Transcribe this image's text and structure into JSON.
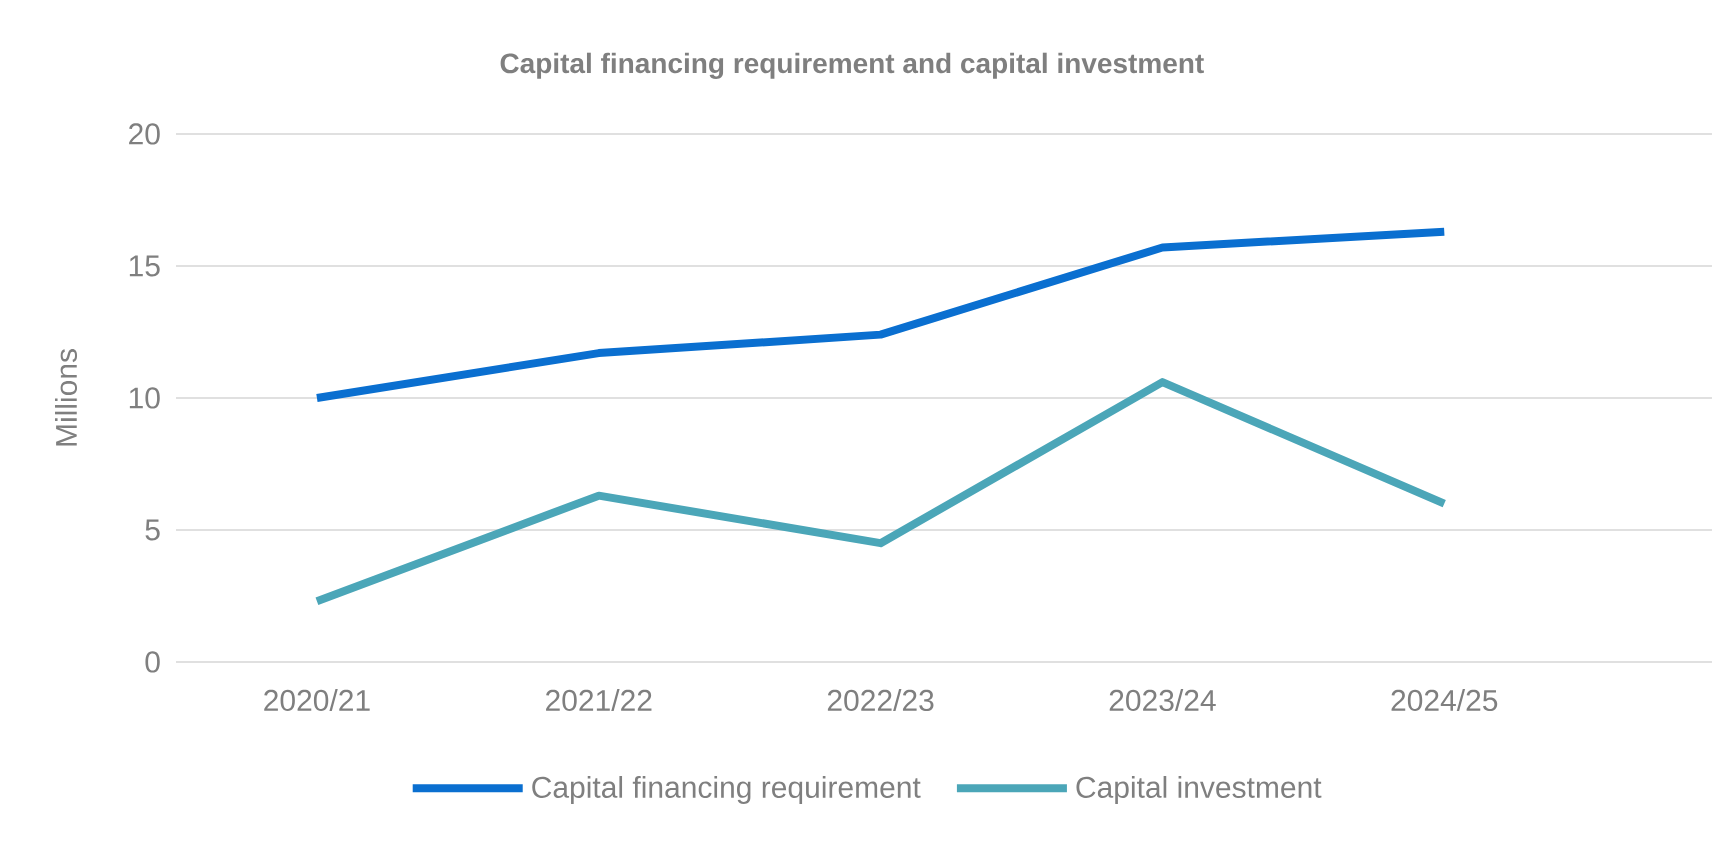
{
  "chart_data": {
    "type": "line",
    "title": "Capital financing requirement and capital investment",
    "ylabel": "Millions",
    "categories": [
      "2020/21",
      "2021/22",
      "2022/23",
      "2023/24",
      "2024/25"
    ],
    "series": [
      {
        "name": "Capital financing requirement",
        "color": "#0a6fd0",
        "values": [
          10,
          11.7,
          12.4,
          15.7,
          16.3
        ]
      },
      {
        "name": "Capital investment",
        "color": "#4ba6b8",
        "values": [
          2.3,
          6.3,
          4.5,
          10.6,
          6.0
        ]
      }
    ],
    "ylim": [
      0,
      20
    ],
    "yticks": [
      0,
      5,
      10,
      15,
      20
    ],
    "grid": "y",
    "legend": "bottom",
    "marker": "none",
    "line_style": "solid"
  }
}
